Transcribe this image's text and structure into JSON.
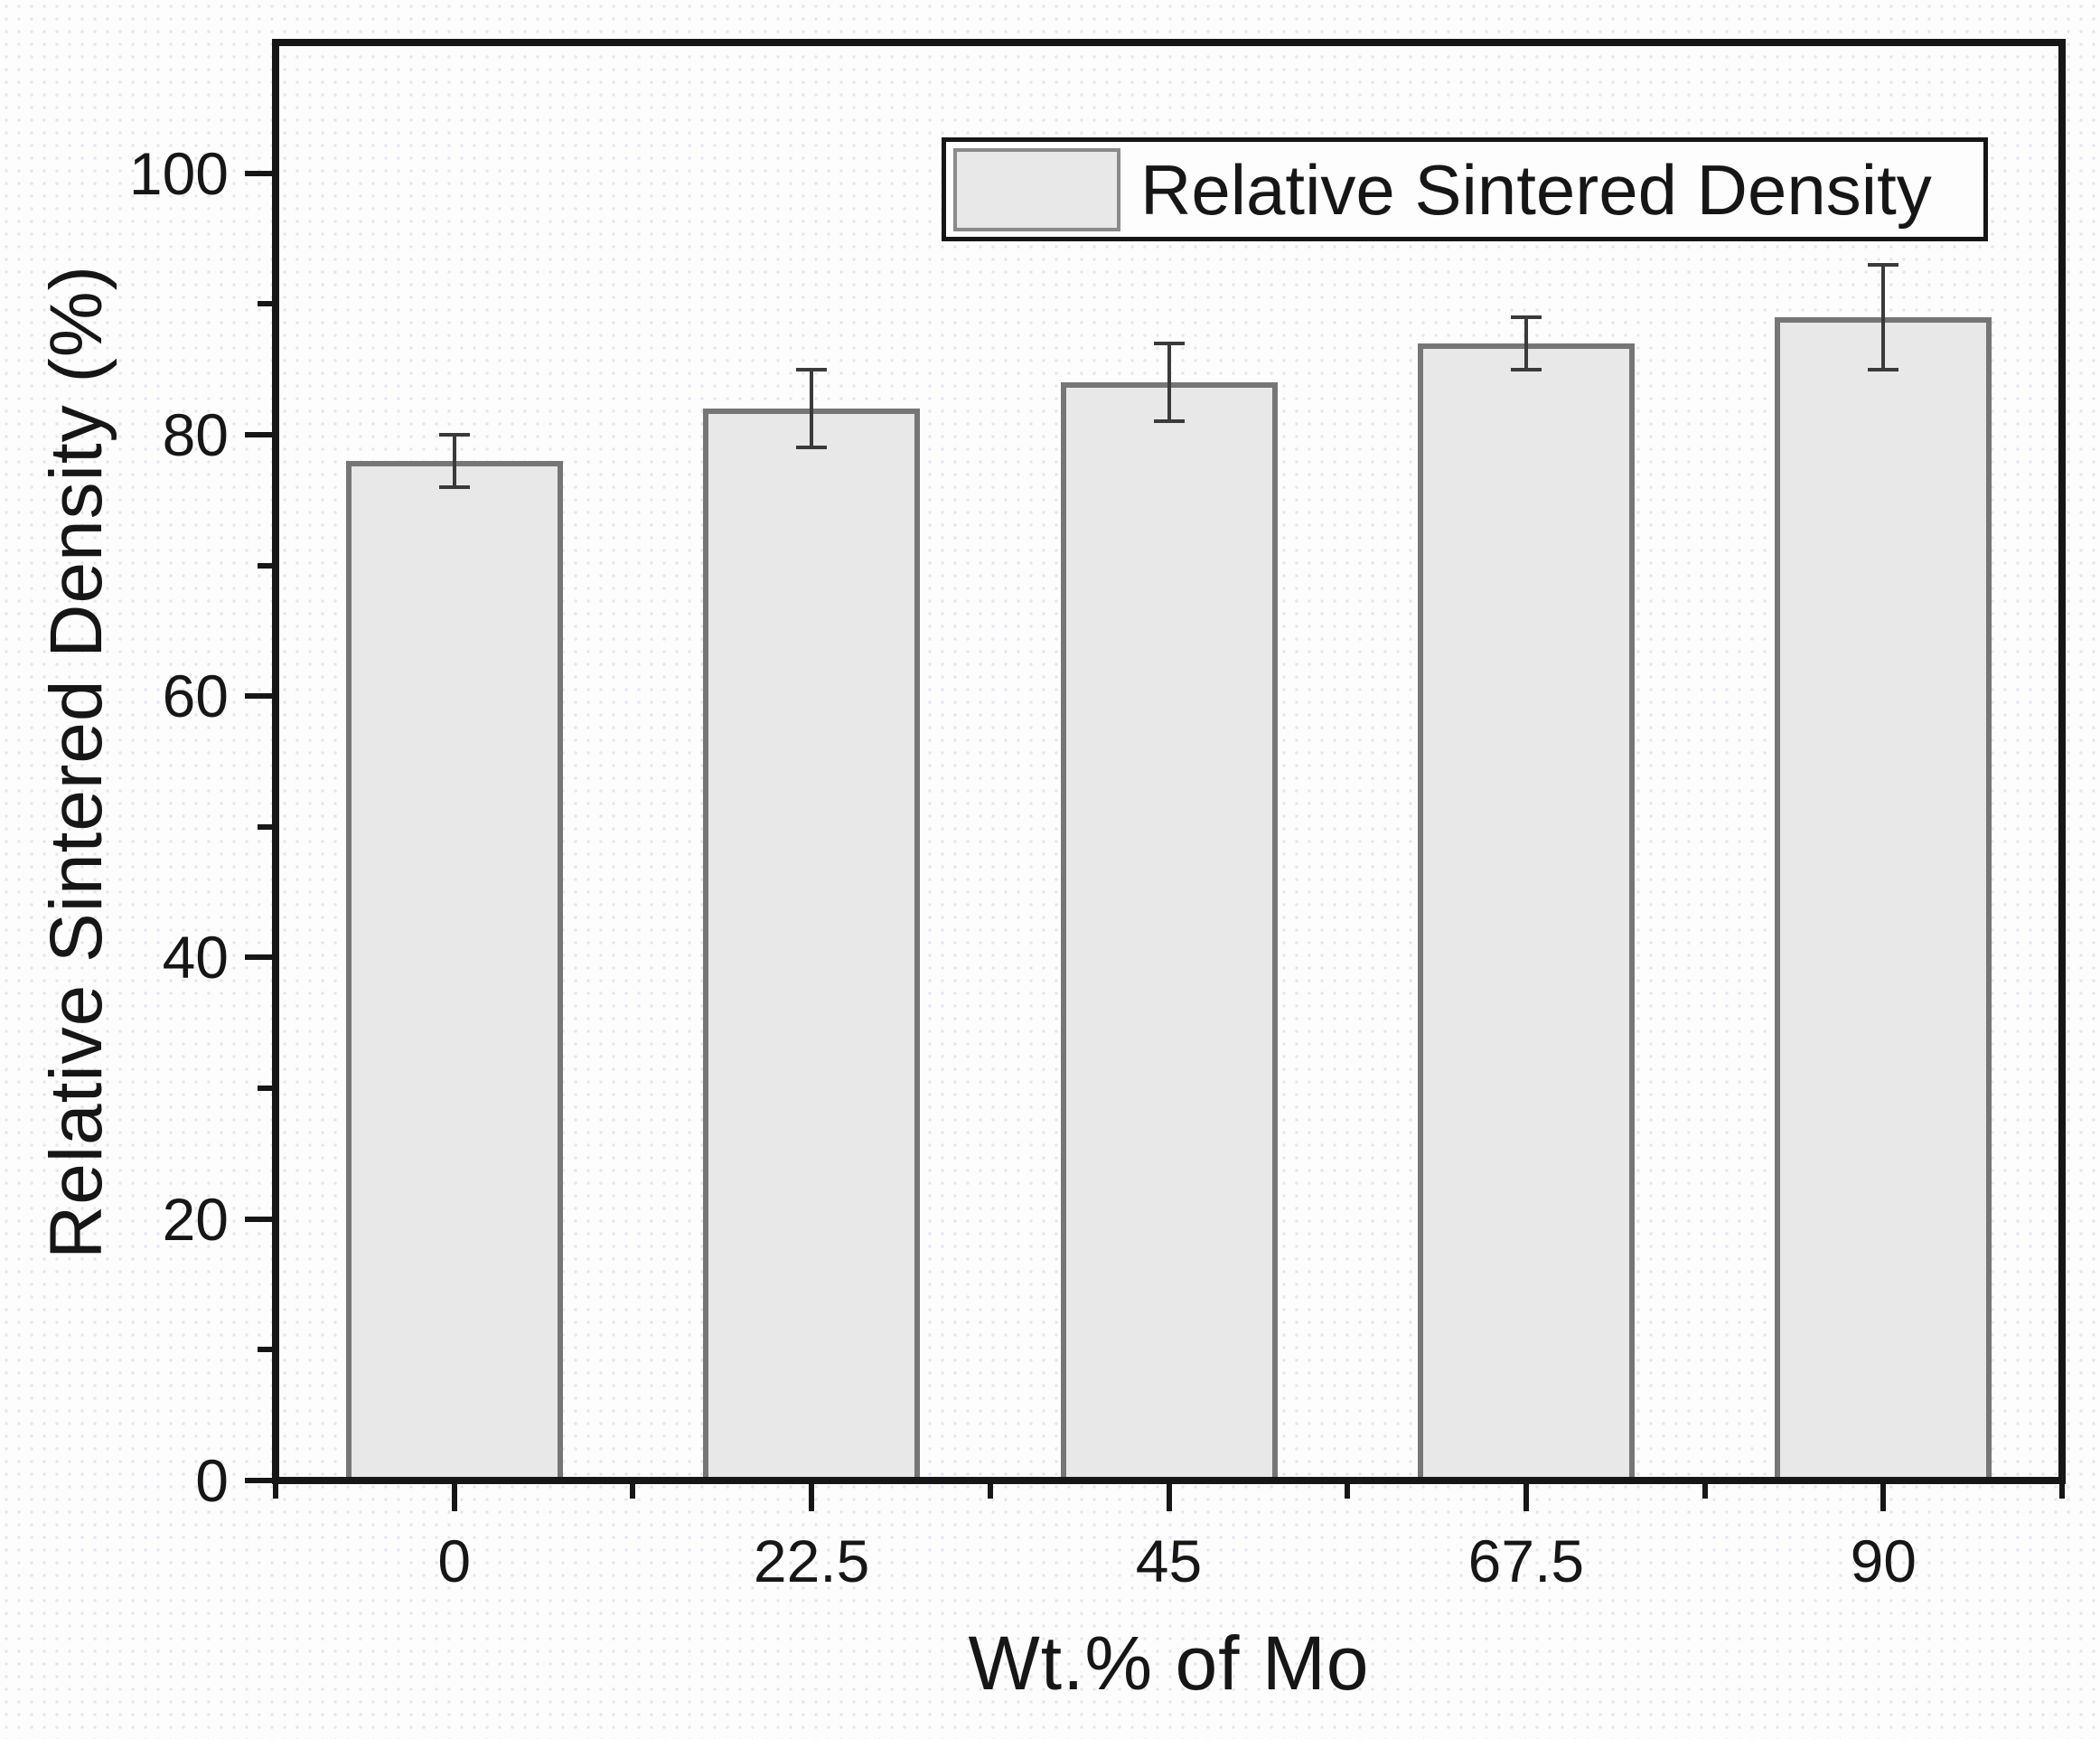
{
  "figure": {
    "kind": "scientific-bar-plot",
    "background_color": "#fdfdfe",
    "frame_color": "#161616"
  },
  "chart_data": {
    "type": "bar",
    "title": "",
    "xlabel": "Wt.% of Mo",
    "ylabel": "Relative Sintered Density (%)",
    "categories": [
      "0",
      "22.5",
      "45",
      "67.5",
      "90"
    ],
    "values": [
      78,
      82,
      84,
      87,
      89
    ],
    "error_bars": [
      2,
      3,
      3,
      2,
      4
    ],
    "ylim": [
      0,
      110
    ],
    "y_major_ticks": [
      0,
      20,
      40,
      60,
      80,
      100
    ],
    "y_minor_ticks": [
      10,
      30,
      50,
      70,
      90
    ],
    "grid": false,
    "legend": {
      "entries": [
        "Relative Sintered Density"
      ],
      "position": "top-right-inside"
    },
    "bar_fill": "#e8e8e8",
    "bar_border": "#767676",
    "error_color": "#3a3a3a",
    "tick_color": "#161616",
    "text_color": "#161616"
  }
}
